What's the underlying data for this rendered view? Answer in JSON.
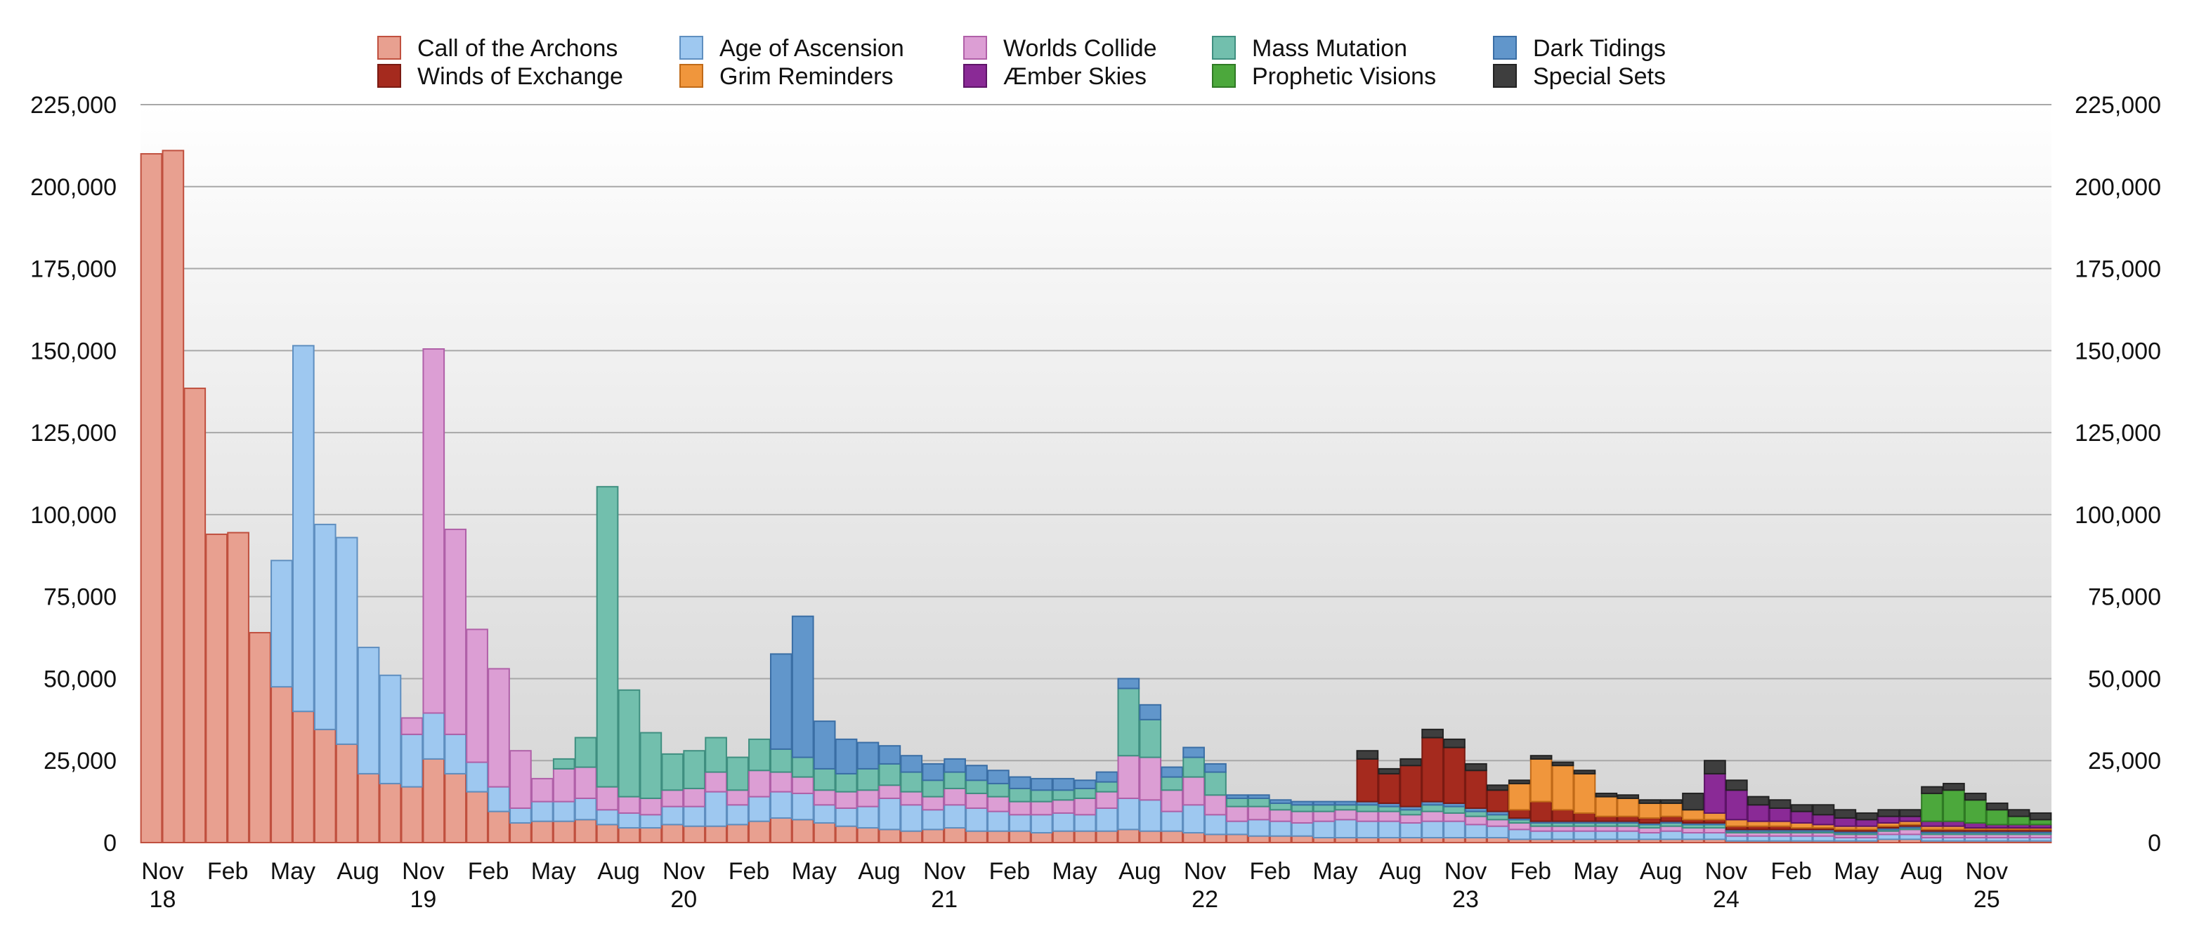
{
  "chart_data": {
    "type": "bar",
    "stacked": true,
    "title": "",
    "xlabel": "",
    "ylabel": "",
    "ylim": [
      0,
      225000
    ],
    "y_ticks": [
      0,
      25000,
      50000,
      75000,
      100000,
      125000,
      150000,
      175000,
      200000,
      225000
    ],
    "y_tick_labels": [
      "0",
      "25,000",
      "50,000",
      "75,000",
      "100,000",
      "125,000",
      "150,000",
      "175,000",
      "200,000",
      "225,000"
    ],
    "x_tick_labels": [
      {
        "index": 0,
        "line1": "Nov",
        "line2": "18"
      },
      {
        "index": 3,
        "line1": "Feb",
        "line2": ""
      },
      {
        "index": 6,
        "line1": "May",
        "line2": ""
      },
      {
        "index": 9,
        "line1": "Aug",
        "line2": ""
      },
      {
        "index": 12,
        "line1": "Nov",
        "line2": "19"
      },
      {
        "index": 15,
        "line1": "Feb",
        "line2": ""
      },
      {
        "index": 18,
        "line1": "May",
        "line2": ""
      },
      {
        "index": 21,
        "line1": "Aug",
        "line2": ""
      },
      {
        "index": 24,
        "line1": "Nov",
        "line2": "20"
      },
      {
        "index": 27,
        "line1": "Feb",
        "line2": ""
      },
      {
        "index": 30,
        "line1": "May",
        "line2": ""
      },
      {
        "index": 33,
        "line1": "Aug",
        "line2": ""
      },
      {
        "index": 36,
        "line1": "Nov",
        "line2": "21"
      },
      {
        "index": 39,
        "line1": "Feb",
        "line2": ""
      },
      {
        "index": 42,
        "line1": "May",
        "line2": ""
      },
      {
        "index": 45,
        "line1": "Aug",
        "line2": ""
      },
      {
        "index": 48,
        "line1": "Nov",
        "line2": "22"
      },
      {
        "index": 51,
        "line1": "Feb",
        "line2": ""
      },
      {
        "index": 54,
        "line1": "May",
        "line2": ""
      },
      {
        "index": 57,
        "line1": "Aug",
        "line2": ""
      },
      {
        "index": 60,
        "line1": "Nov",
        "line2": "23"
      },
      {
        "index": 63,
        "line1": "Feb",
        "line2": ""
      },
      {
        "index": 66,
        "line1": "May",
        "line2": ""
      },
      {
        "index": 69,
        "line1": "Aug",
        "line2": ""
      },
      {
        "index": 72,
        "line1": "Nov",
        "line2": "24"
      },
      {
        "index": 75,
        "line1": "Feb",
        "line2": ""
      },
      {
        "index": 78,
        "line1": "May",
        "line2": ""
      },
      {
        "index": 81,
        "line1": "Aug",
        "line2": ""
      },
      {
        "index": 84,
        "line1": "Nov",
        "line2": "25"
      }
    ],
    "grid": true,
    "legend_position": "top",
    "background": "gradient white to light gray",
    "series": [
      {
        "name": "Call of the Archons",
        "color": "#e8a090",
        "stroke": "#c0503f",
        "values": [
          210000,
          211000,
          138500,
          94000,
          94500,
          64000,
          47500,
          40000,
          34500,
          30000,
          21000,
          18000,
          17000,
          25500,
          21000,
          15500,
          9500,
          6000,
          6500,
          6500,
          7000,
          5500,
          4500,
          4500,
          5500,
          5000,
          5000,
          5500,
          6500,
          7500,
          7000,
          6000,
          5000,
          4500,
          4000,
          3500,
          4000,
          4500,
          3500,
          3500,
          3500,
          3000,
          3500,
          3500,
          3500,
          4000,
          3500,
          3500,
          3000,
          2500,
          2500,
          2000,
          2000,
          2000,
          1500,
          1500,
          1500,
          1500,
          1500,
          1500,
          1500,
          1500,
          1500,
          1000,
          1000,
          1000,
          1000,
          1000,
          1000,
          1000,
          1000,
          1000,
          1000,
          500,
          500,
          500,
          500,
          500,
          500,
          500,
          1000,
          1000,
          500,
          500,
          500,
          500,
          500,
          500
        ]
      },
      {
        "name": "Age of Ascension",
        "color": "#9ec8f0",
        "stroke": "#5f8fc0",
        "values": [
          0,
          0,
          0,
          0,
          0,
          0,
          38500,
          111500,
          62500,
          63000,
          38500,
          33000,
          16000,
          14000,
          12000,
          9000,
          7500,
          4500,
          6000,
          6000,
          6500,
          4500,
          4500,
          4000,
          5500,
          6000,
          10500,
          6000,
          7500,
          8000,
          8000,
          5500,
          5500,
          6500,
          9500,
          8000,
          6000,
          7000,
          7000,
          6000,
          5000,
          5500,
          5500,
          5000,
          7000,
          9500,
          9500,
          6000,
          8500,
          6000,
          4000,
          5000,
          4500,
          4000,
          5000,
          5500,
          5000,
          5000,
          4500,
          5000,
          5000,
          4000,
          3500,
          3000,
          2500,
          2500,
          2500,
          2500,
          2500,
          2000,
          2500,
          2000,
          2000,
          1500,
          1500,
          1500,
          1500,
          1500,
          1000,
          1000,
          1500,
          1500,
          1000,
          1000,
          1000,
          1000,
          1000,
          1000
        ]
      },
      {
        "name": "Worlds Collide",
        "color": "#dc9ed4",
        "stroke": "#b060a8",
        "values": [
          0,
          0,
          0,
          0,
          0,
          0,
          0,
          0,
          0,
          0,
          0,
          0,
          5000,
          111000,
          62500,
          40500,
          36000,
          17500,
          7000,
          10000,
          9500,
          7000,
          5000,
          5000,
          5000,
          5500,
          6000,
          4500,
          8000,
          6000,
          5000,
          4500,
          5000,
          5000,
          4000,
          4000,
          4000,
          5000,
          4500,
          4500,
          4000,
          4000,
          4000,
          5000,
          5000,
          13000,
          13000,
          6500,
          8500,
          6000,
          4500,
          4000,
          3500,
          3500,
          3000,
          3000,
          3000,
          3000,
          2500,
          3000,
          2500,
          2500,
          2000,
          2000,
          1500,
          1500,
          1500,
          1500,
          1500,
          1500,
          1500,
          1500,
          1500,
          1000,
          1000,
          1000,
          1000,
          1000,
          1000,
          1000,
          1000,
          1500,
          1000,
          1000,
          1000,
          1000,
          1000,
          1000
        ]
      },
      {
        "name": "Mass Mutation",
        "color": "#72bfad",
        "stroke": "#3f8f80",
        "values": [
          0,
          0,
          0,
          0,
          0,
          0,
          0,
          0,
          0,
          0,
          0,
          0,
          0,
          0,
          0,
          0,
          0,
          0,
          0,
          3000,
          9000,
          91500,
          32500,
          20000,
          11000,
          11500,
          10500,
          10000,
          9500,
          7000,
          6000,
          6500,
          5500,
          6500,
          6500,
          6000,
          5000,
          5000,
          4000,
          4000,
          4000,
          3500,
          3000,
          3000,
          3000,
          20500,
          11500,
          4000,
          6000,
          7000,
          2500,
          2500,
          2000,
          2000,
          2000,
          1500,
          2000,
          1500,
          1500,
          2000,
          2000,
          1500,
          1500,
          1000,
          1000,
          1000,
          1000,
          1000,
          1000,
          1000,
          1000,
          1000,
          1000,
          500,
          500,
          500,
          500,
          500,
          500,
          500,
          500,
          500,
          500,
          500,
          500,
          500,
          500,
          500
        ]
      },
      {
        "name": "Dark Tidings",
        "color": "#6196cb",
        "stroke": "#3a6ea5",
        "values": [
          0,
          0,
          0,
          0,
          0,
          0,
          0,
          0,
          0,
          0,
          0,
          0,
          0,
          0,
          0,
          0,
          0,
          0,
          0,
          0,
          0,
          0,
          0,
          0,
          0,
          0,
          0,
          0,
          0,
          29000,
          43000,
          14500,
          10500,
          8000,
          5500,
          5000,
          5000,
          4000,
          4500,
          4000,
          3500,
          3500,
          3500,
          2500,
          3000,
          3000,
          4500,
          3000,
          3000,
          2500,
          1000,
          1000,
          1000,
          1000,
          1000,
          1000,
          1000,
          1000,
          1000,
          1000,
          1000,
          1000,
          1000,
          500,
          500,
          500,
          500,
          500,
          500,
          500,
          500,
          500,
          500,
          500,
          500,
          500,
          500,
          500,
          500,
          500,
          500,
          500,
          500,
          500,
          500,
          500,
          500,
          500
        ]
      },
      {
        "name": "Winds of Exchange",
        "color": "#a52a1e",
        "stroke": "#7a1a12",
        "values": [
          0,
          0,
          0,
          0,
          0,
          0,
          0,
          0,
          0,
          0,
          0,
          0,
          0,
          0,
          0,
          0,
          0,
          0,
          0,
          0,
          0,
          0,
          0,
          0,
          0,
          0,
          0,
          0,
          0,
          0,
          0,
          0,
          0,
          0,
          0,
          0,
          0,
          0,
          0,
          0,
          0,
          0,
          0,
          0,
          0,
          0,
          0,
          0,
          0,
          0,
          0,
          0,
          0,
          0,
          0,
          0,
          13000,
          9000,
          12500,
          19500,
          17000,
          11500,
          6500,
          2500,
          6000,
          3500,
          2500,
          1500,
          1500,
          1500,
          1500,
          1000,
          1000,
          1000,
          1000,
          1000,
          500,
          500,
          500,
          500,
          500,
          500,
          500,
          500,
          500,
          500,
          500,
          500
        ]
      },
      {
        "name": "Grim Reminders",
        "color": "#f0963c",
        "stroke": "#c06a18",
        "values": [
          0,
          0,
          0,
          0,
          0,
          0,
          0,
          0,
          0,
          0,
          0,
          0,
          0,
          0,
          0,
          0,
          0,
          0,
          0,
          0,
          0,
          0,
          0,
          0,
          0,
          0,
          0,
          0,
          0,
          0,
          0,
          0,
          0,
          0,
          0,
          0,
          0,
          0,
          0,
          0,
          0,
          0,
          0,
          0,
          0,
          0,
          0,
          0,
          0,
          0,
          0,
          0,
          0,
          0,
          0,
          0,
          0,
          0,
          0,
          0,
          0,
          0,
          0,
          8000,
          13000,
          13500,
          12000,
          6000,
          5500,
          4500,
          4000,
          3000,
          2000,
          2000,
          1500,
          1500,
          1500,
          1000,
          1000,
          1000,
          1000,
          1000,
          1000,
          1000,
          500,
          500,
          500,
          500
        ]
      },
      {
        "name": "Æmber Skies",
        "color": "#8a2a96",
        "stroke": "#5e1468",
        "values": [
          0,
          0,
          0,
          0,
          0,
          0,
          0,
          0,
          0,
          0,
          0,
          0,
          0,
          0,
          0,
          0,
          0,
          0,
          0,
          0,
          0,
          0,
          0,
          0,
          0,
          0,
          0,
          0,
          0,
          0,
          0,
          0,
          0,
          0,
          0,
          0,
          0,
          0,
          0,
          0,
          0,
          0,
          0,
          0,
          0,
          0,
          0,
          0,
          0,
          0,
          0,
          0,
          0,
          0,
          0,
          0,
          0,
          0,
          0,
          0,
          0,
          0,
          0,
          0,
          0,
          0,
          0,
          0,
          0,
          0,
          0,
          0,
          12000,
          9000,
          5000,
          4000,
          3500,
          3000,
          2500,
          2000,
          2000,
          1500,
          1500,
          1500,
          1500,
          1000,
          1000,
          1000
        ]
      },
      {
        "name": "Prophetic Visions",
        "color": "#4ca83c",
        "stroke": "#2f7a24",
        "values": [
          0,
          0,
          0,
          0,
          0,
          0,
          0,
          0,
          0,
          0,
          0,
          0,
          0,
          0,
          0,
          0,
          0,
          0,
          0,
          0,
          0,
          0,
          0,
          0,
          0,
          0,
          0,
          0,
          0,
          0,
          0,
          0,
          0,
          0,
          0,
          0,
          0,
          0,
          0,
          0,
          0,
          0,
          0,
          0,
          0,
          0,
          0,
          0,
          0,
          0,
          0,
          0,
          0,
          0,
          0,
          0,
          0,
          0,
          0,
          0,
          0,
          0,
          0,
          0,
          0,
          0,
          0,
          0,
          0,
          0,
          0,
          0,
          0,
          0,
          0,
          0,
          0,
          0,
          0,
          0,
          0,
          0,
          8500,
          9500,
          7000,
          4500,
          2500,
          1500
        ]
      },
      {
        "name": "Special Sets",
        "color": "#3e3e3e",
        "stroke": "#222222",
        "values": [
          0,
          0,
          0,
          0,
          0,
          0,
          0,
          0,
          0,
          0,
          0,
          0,
          0,
          0,
          0,
          0,
          0,
          0,
          0,
          0,
          0,
          0,
          0,
          0,
          0,
          0,
          0,
          0,
          0,
          0,
          0,
          0,
          0,
          0,
          0,
          0,
          0,
          0,
          0,
          0,
          0,
          0,
          0,
          0,
          0,
          0,
          0,
          0,
          0,
          0,
          0,
          0,
          0,
          0,
          0,
          0,
          2500,
          1500,
          2000,
          2500,
          2500,
          2000,
          1500,
          1000,
          1000,
          1000,
          1000,
          1000,
          1000,
          1000,
          1000,
          5000,
          4000,
          3000,
          2500,
          2500,
          2000,
          3000,
          2500,
          2000,
          2000,
          2000,
          2000,
          2000,
          2000,
          2000,
          2000,
          2000
        ]
      }
    ]
  }
}
